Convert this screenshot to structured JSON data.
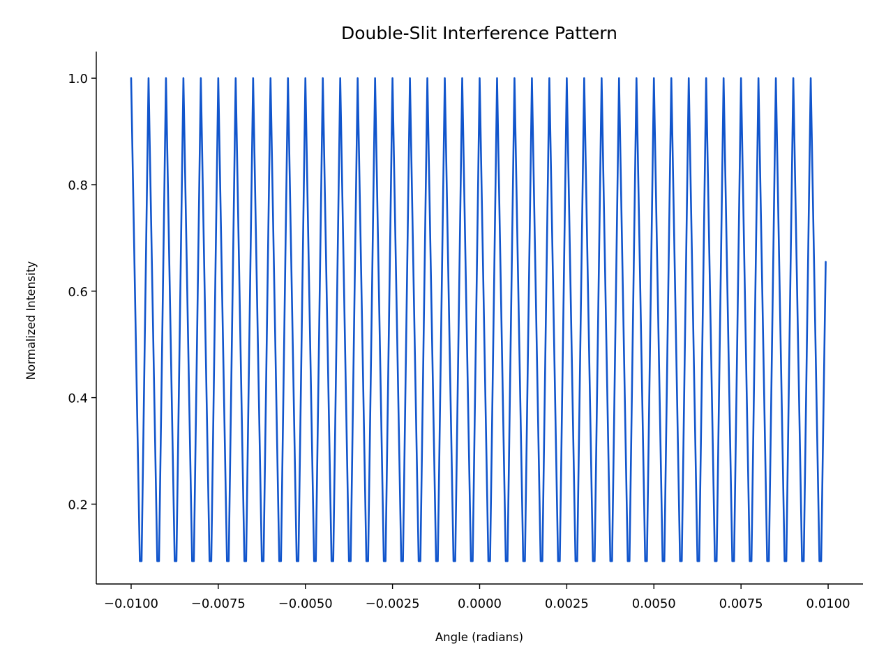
{
  "chart_data": {
    "type": "line",
    "title": "Double-Slit Interference Pattern",
    "xlabel": "Angle (radians)",
    "ylabel": "Normalized Intensity",
    "xlim": [
      -0.011,
      0.011
    ],
    "ylim": [
      0.05,
      1.05
    ],
    "grid": false,
    "legend": "none",
    "x_ticks": [
      -0.01,
      -0.0075,
      -0.005,
      -0.0025,
      0.0,
      0.0025,
      0.005,
      0.0075,
      0.01
    ],
    "x_tick_labels": [
      "−0.0100",
      "−0.0075",
      "−0.0050",
      "−0.0025",
      "0.0000",
      "0.0025",
      "0.0050",
      "0.0075",
      "0.0100"
    ],
    "y_ticks": [
      0.2,
      0.4,
      0.6,
      0.8,
      1.0
    ],
    "y_tick_labels": [
      "0.2",
      "0.4",
      "0.6",
      "0.8",
      "1.0"
    ],
    "series": [
      {
        "color": "#1155cc",
        "x": [
          -0.01,
          -0.00975,
          -0.0097,
          -0.0095,
          -0.00925,
          -0.0092,
          -0.009,
          -0.00875,
          -0.0087,
          -0.0085,
          -0.00825,
          -0.0082,
          -0.008,
          -0.00775,
          -0.0077,
          -0.0075,
          -0.00725,
          -0.0072,
          -0.007,
          -0.00675,
          -0.0067,
          -0.0065,
          -0.00625,
          -0.0062,
          -0.006,
          -0.00575,
          -0.0057,
          -0.0055,
          -0.00525,
          -0.0052,
          -0.005,
          -0.00475,
          -0.0047,
          -0.0045,
          -0.00425,
          -0.0042,
          -0.004,
          -0.00375,
          -0.0037,
          -0.0035,
          -0.00325,
          -0.0032,
          -0.003,
          -0.00275,
          -0.0027,
          -0.0025,
          -0.00225,
          -0.0022,
          -0.002,
          -0.00175,
          -0.0017,
          -0.0015,
          -0.00125,
          -0.0012,
          -0.001,
          -0.00075,
          -0.0007,
          -0.0005,
          -0.00025,
          -0.0002,
          0.0,
          0.00025,
          0.0003,
          0.0005,
          0.00075,
          0.0008,
          0.001,
          0.00125,
          0.0013,
          0.0015,
          0.00175,
          0.0018,
          0.002,
          0.00225,
          0.0023,
          0.0025,
          0.00275,
          0.0028,
          0.003,
          0.00325,
          0.0033,
          0.0035,
          0.00375,
          0.0038,
          0.004,
          0.00425,
          0.0043,
          0.0045,
          0.00475,
          0.0048,
          0.005,
          0.00525,
          0.0053,
          0.0055,
          0.00575,
          0.0058,
          0.006,
          0.00625,
          0.0063,
          0.0065,
          0.00675,
          0.0068,
          0.007,
          0.00725,
          0.0073,
          0.0075,
          0.00775,
          0.0078,
          0.008,
          0.00825,
          0.0083,
          0.0085,
          0.00875,
          0.0088,
          0.009,
          0.00925,
          0.0093,
          0.0095,
          0.00975,
          0.0098,
          0.00993
        ],
        "y": [
          1.0,
          0.093,
          0.093,
          1.0,
          0.093,
          0.093,
          1.0,
          0.093,
          0.093,
          1.0,
          0.093,
          0.093,
          1.0,
          0.093,
          0.093,
          1.0,
          0.093,
          0.093,
          1.0,
          0.093,
          0.093,
          1.0,
          0.093,
          0.093,
          1.0,
          0.093,
          0.093,
          1.0,
          0.093,
          0.093,
          1.0,
          0.093,
          0.093,
          1.0,
          0.093,
          0.093,
          1.0,
          0.093,
          0.093,
          1.0,
          0.093,
          0.093,
          1.0,
          0.093,
          0.093,
          1.0,
          0.093,
          0.093,
          1.0,
          0.093,
          0.093,
          1.0,
          0.093,
          0.093,
          1.0,
          0.093,
          0.093,
          1.0,
          0.093,
          0.093,
          1.0,
          0.093,
          0.093,
          1.0,
          0.093,
          0.093,
          1.0,
          0.093,
          0.093,
          1.0,
          0.093,
          0.093,
          1.0,
          0.093,
          0.093,
          1.0,
          0.093,
          0.093,
          1.0,
          0.093,
          0.093,
          1.0,
          0.093,
          0.093,
          1.0,
          0.093,
          0.093,
          1.0,
          0.093,
          0.093,
          1.0,
          0.093,
          0.093,
          1.0,
          0.093,
          0.093,
          1.0,
          0.093,
          0.093,
          1.0,
          0.093,
          0.093,
          1.0,
          0.093,
          0.093,
          1.0,
          0.093,
          0.093,
          1.0,
          0.093,
          0.093,
          1.0,
          0.093,
          0.093,
          1.0,
          0.093,
          0.093,
          1.0,
          0.093,
          0.093,
          0.655
        ]
      }
    ]
  }
}
